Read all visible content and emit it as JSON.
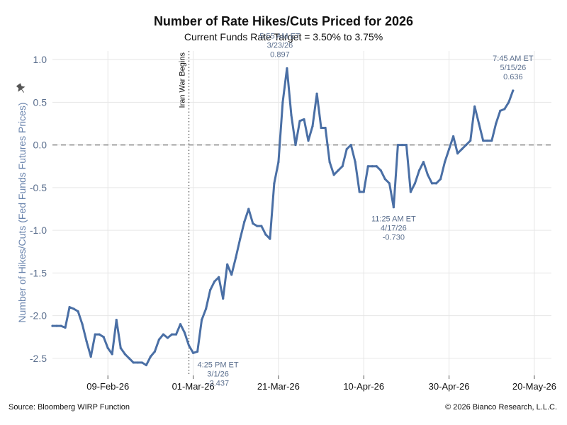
{
  "header": {
    "title": "Number of Rate Hikes/Cuts Priced for 2026",
    "subtitle": "Current Funds Rate Target = 3.50% to 3.75%"
  },
  "footer": {
    "source": "Source: Bloomberg WIRP Function",
    "copyright": "© 2026 Bianco Research, L.L.C."
  },
  "chart_data": {
    "type": "line",
    "title": "Number of Rate Hikes/Cuts Priced for 2026",
    "subtitle": "Current Funds Rate Target = 3.50% to 3.75%",
    "xlabel": "",
    "ylabel": "Number of Hikes/Cuts (Fed Funds Futures Prices)",
    "ylim": [
      -2.7,
      1.1
    ],
    "xlim": [
      "2026-01-27",
      "2026-05-24"
    ],
    "yticks": [
      1.0,
      0.5,
      0.0,
      -0.5,
      -1.0,
      -1.5,
      -2.0,
      -2.5
    ],
    "ytick_labels": [
      "1.0",
      "0.5",
      "0.0",
      "-0.5",
      "-1.0",
      "-1.5",
      "-2.0",
      "-2.5"
    ],
    "xticks": [
      "2026-02-09",
      "2026-03-01",
      "2026-03-21",
      "2026-04-10",
      "2026-04-30",
      "2026-05-20"
    ],
    "xtick_labels": [
      "09-Feb-26",
      "01-Mar-26",
      "21-Mar-26",
      "10-Apr-26",
      "30-Apr-26",
      "20-May-26"
    ],
    "grid": true,
    "line_color": "#4a6fa5",
    "reference_line": {
      "y": 0.0,
      "style": "dashed",
      "color": "#888888"
    },
    "event_line": {
      "x": "2026-02-28",
      "label": "Iran War Begins",
      "style": "dotted"
    },
    "annotations": [
      {
        "lines": [
          "4:25 PM ET",
          "3/1/26",
          "-2.437"
        ],
        "x": "2026-03-01",
        "y": -2.437
      },
      {
        "lines": [
          "5:55 AM ET",
          "3/23/26",
          "0.897"
        ],
        "x": "2026-03-23",
        "y": 0.897
      },
      {
        "lines": [
          "11:25 AM ET",
          "4/17/26",
          "-0.730"
        ],
        "x": "2026-04-17",
        "y": -0.73
      },
      {
        "lines": [
          "7:45 AM ET",
          "5/15/26",
          "0.636"
        ],
        "x": "2026-05-15",
        "y": 0.636
      }
    ],
    "series": [
      {
        "x": [
          "2026-01-27",
          "2026-01-28",
          "2026-01-29",
          "2026-01-30",
          "2026-01-31",
          "2026-02-01",
          "2026-02-02",
          "2026-02-03",
          "2026-02-04",
          "2026-02-05",
          "2026-02-06",
          "2026-02-07",
          "2026-02-08",
          "2026-02-09",
          "2026-02-10",
          "2026-02-11",
          "2026-02-12",
          "2026-02-13",
          "2026-02-14",
          "2026-02-15",
          "2026-02-16",
          "2026-02-17",
          "2026-02-18",
          "2026-02-19",
          "2026-02-20",
          "2026-02-21",
          "2026-02-22",
          "2026-02-23",
          "2026-02-24",
          "2026-02-25",
          "2026-02-26",
          "2026-02-27",
          "2026-02-28",
          "2026-03-01",
          "2026-03-02",
          "2026-03-03",
          "2026-03-04",
          "2026-03-05",
          "2026-03-06",
          "2026-03-07",
          "2026-03-08",
          "2026-03-09",
          "2026-03-10",
          "2026-03-11",
          "2026-03-12",
          "2026-03-13",
          "2026-03-14",
          "2026-03-15",
          "2026-03-16",
          "2026-03-17",
          "2026-03-18",
          "2026-03-19",
          "2026-03-20",
          "2026-03-21",
          "2026-03-22",
          "2026-03-23",
          "2026-03-24",
          "2026-03-25",
          "2026-03-26",
          "2026-03-27",
          "2026-03-28",
          "2026-03-29",
          "2026-03-30",
          "2026-03-31",
          "2026-04-01",
          "2026-04-02",
          "2026-04-03",
          "2026-04-04",
          "2026-04-05",
          "2026-04-06",
          "2026-04-07",
          "2026-04-08",
          "2026-04-09",
          "2026-04-10",
          "2026-04-11",
          "2026-04-12",
          "2026-04-13",
          "2026-04-14",
          "2026-04-15",
          "2026-04-16",
          "2026-04-17",
          "2026-04-18",
          "2026-04-19",
          "2026-04-20",
          "2026-04-21",
          "2026-04-22",
          "2026-04-23",
          "2026-04-24",
          "2026-04-25",
          "2026-04-26",
          "2026-04-27",
          "2026-04-28",
          "2026-04-29",
          "2026-04-30",
          "2026-05-01",
          "2026-05-02",
          "2026-05-03",
          "2026-05-04",
          "2026-05-05",
          "2026-05-06",
          "2026-05-07",
          "2026-05-08",
          "2026-05-09",
          "2026-05-10",
          "2026-05-11",
          "2026-05-12",
          "2026-05-13",
          "2026-05-14",
          "2026-05-15"
        ],
        "values": [
          -2.12,
          -2.12,
          -2.12,
          -2.14,
          -1.9,
          -1.92,
          -1.95,
          -2.1,
          -2.3,
          -2.48,
          -2.22,
          -2.22,
          -2.25,
          -2.38,
          -2.45,
          -2.05,
          -2.38,
          -2.45,
          -2.5,
          -2.55,
          -2.55,
          -2.55,
          -2.58,
          -2.48,
          -2.42,
          -2.28,
          -2.22,
          -2.26,
          -2.22,
          -2.22,
          -2.1,
          -2.2,
          -2.35,
          -2.437,
          -2.42,
          -2.05,
          -1.92,
          -1.7,
          -1.6,
          -1.55,
          -1.8,
          -1.4,
          -1.52,
          -1.32,
          -1.1,
          -0.9,
          -0.75,
          -0.92,
          -0.95,
          -0.95,
          -1.05,
          -1.1,
          -0.45,
          -0.2,
          0.5,
          0.897,
          0.35,
          0.0,
          0.28,
          0.3,
          0.05,
          0.22,
          0.6,
          0.2,
          0.2,
          -0.2,
          -0.35,
          -0.3,
          -0.25,
          -0.05,
          0.0,
          -0.2,
          -0.55,
          -0.55,
          -0.25,
          -0.25,
          -0.25,
          -0.3,
          -0.4,
          -0.45,
          -0.73,
          0.0,
          0.0,
          0.0,
          -0.55,
          -0.45,
          -0.3,
          -0.2,
          -0.35,
          -0.45,
          -0.45,
          -0.4,
          -0.2,
          -0.05,
          0.1,
          -0.1,
          -0.05,
          0.0,
          0.05,
          0.45,
          0.25,
          0.05,
          0.05,
          0.05,
          0.25,
          0.4,
          0.42,
          0.5,
          0.636
        ]
      }
    ]
  }
}
